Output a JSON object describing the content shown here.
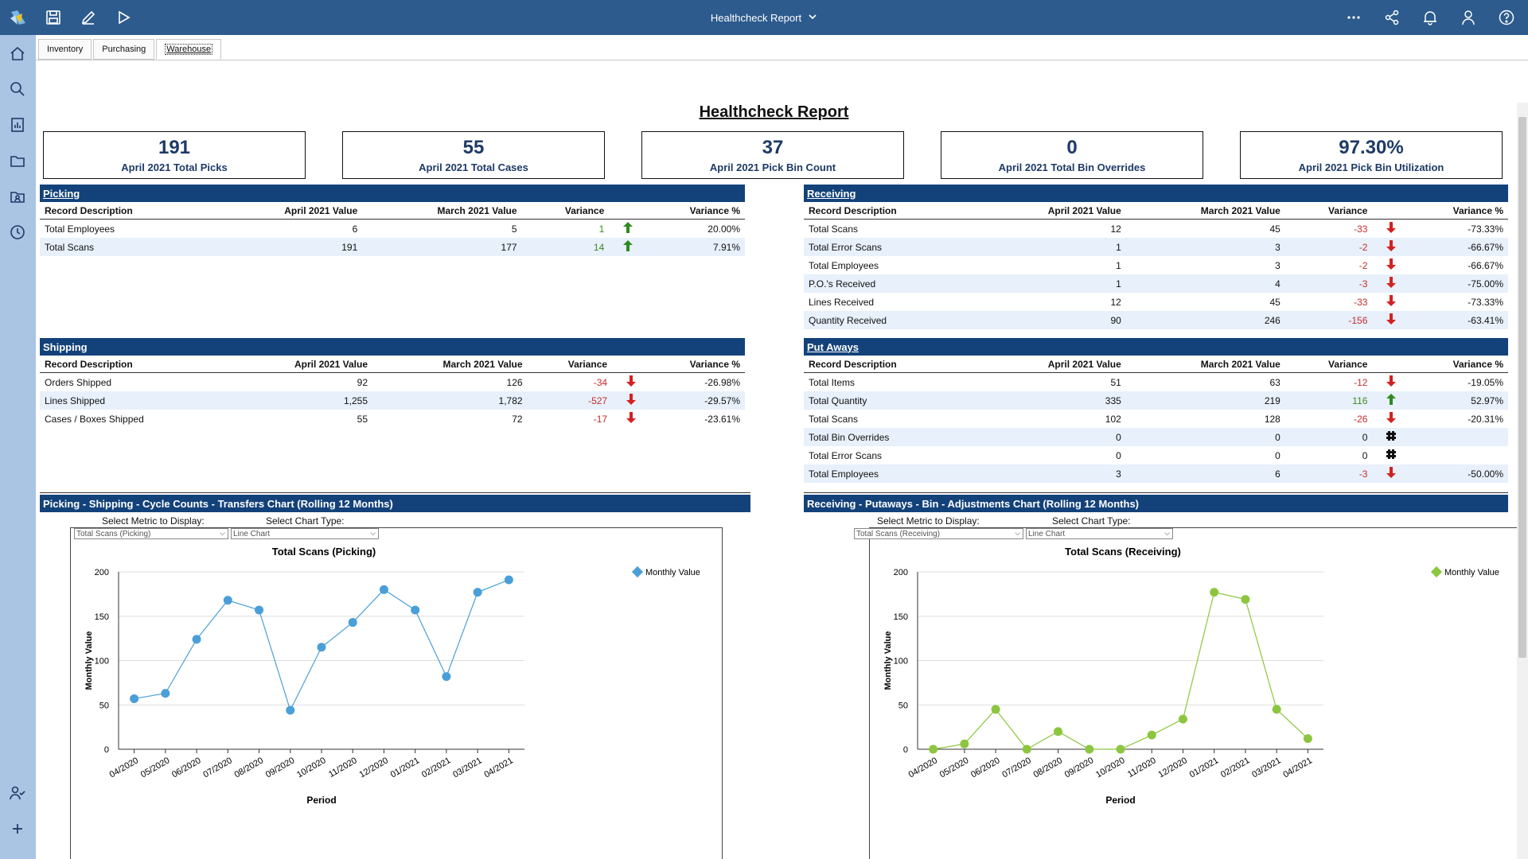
{
  "topbar": {
    "title": "Healthcheck Report",
    "left_icons": [
      "app-logo-icon",
      "save-icon",
      "edit-icon",
      "play-icon"
    ],
    "right_icons": [
      "more-icon",
      "share-icon",
      "bell-icon",
      "user-icon",
      "help-icon"
    ]
  },
  "sidebar": {
    "icons": [
      "home-icon",
      "search-icon",
      "reports-icon",
      "folder-icon",
      "contacts-folder-icon",
      "history-icon",
      "user-check-icon",
      "add-icon"
    ]
  },
  "tabs": [
    {
      "label": "Inventory"
    },
    {
      "label": "Purchasing"
    },
    {
      "label": "Warehouse"
    }
  ],
  "report": {
    "title": "Healthcheck Report",
    "kpis": [
      {
        "value": "191",
        "label": "April 2021 Total Picks"
      },
      {
        "value": "55",
        "label": "April 2021 Total Cases"
      },
      {
        "value": "37",
        "label": "April 2021 Pick Bin Count"
      },
      {
        "value": "0",
        "label": "April 2021 Total Bin Overrides"
      },
      {
        "value": "97.30%",
        "label": "April 2021 Pick Bin Utilization"
      }
    ],
    "columns": [
      "Record Description",
      "April 2021 Value",
      "March 2021 Value",
      "Variance",
      "Variance %"
    ],
    "picking": {
      "title": "Picking",
      "rows": [
        {
          "desc": "Total Employees",
          "apr": "6",
          "mar": "5",
          "var": "1",
          "trend": "up",
          "pct": "20.00%"
        },
        {
          "desc": "Total Scans",
          "apr": "191",
          "mar": "177",
          "var": "14",
          "trend": "up",
          "pct": "7.91%"
        }
      ]
    },
    "shipping": {
      "title": "Shipping",
      "rows": [
        {
          "desc": "Orders Shipped",
          "apr": "92",
          "mar": "126",
          "var": "-34",
          "trend": "down",
          "pct": "-26.98%"
        },
        {
          "desc": "Lines Shipped",
          "apr": "1,255",
          "mar": "1,782",
          "var": "-527",
          "trend": "down",
          "pct": "-29.57%"
        },
        {
          "desc": "Cases / Boxes Shipped",
          "apr": "55",
          "mar": "72",
          "var": "-17",
          "trend": "down",
          "pct": "-23.61%"
        }
      ]
    },
    "receiving": {
      "title": "Receiving",
      "rows": [
        {
          "desc": "Total Scans",
          "apr": "12",
          "mar": "45",
          "var": "-33",
          "trend": "down",
          "pct": "-73.33%"
        },
        {
          "desc": "Total Error Scans",
          "apr": "1",
          "mar": "3",
          "var": "-2",
          "trend": "down",
          "pct": "-66.67%"
        },
        {
          "desc": "Total Employees",
          "apr": "1",
          "mar": "3",
          "var": "-2",
          "trend": "down",
          "pct": "-66.67%"
        },
        {
          "desc": "P.O.'s Received",
          "apr": "1",
          "mar": "4",
          "var": "-3",
          "trend": "down",
          "pct": "-75.00%"
        },
        {
          "desc": "Lines Received",
          "apr": "12",
          "mar": "45",
          "var": "-33",
          "trend": "down",
          "pct": "-73.33%"
        },
        {
          "desc": "Quantity Received",
          "apr": "90",
          "mar": "246",
          "var": "-156",
          "trend": "down",
          "pct": "-63.41%"
        }
      ]
    },
    "putaways": {
      "title": "Put Aways",
      "rows": [
        {
          "desc": "Total Items",
          "apr": "51",
          "mar": "63",
          "var": "-12",
          "trend": "down",
          "pct": "-19.05%"
        },
        {
          "desc": "Total Quantity",
          "apr": "335",
          "mar": "219",
          "var": "116",
          "trend": "up",
          "pct": "52.97%"
        },
        {
          "desc": "Total Scans",
          "apr": "102",
          "mar": "128",
          "var": "-26",
          "trend": "down",
          "pct": "-20.31%"
        },
        {
          "desc": "Total Bin Overrides",
          "apr": "0",
          "mar": "0",
          "var": "0",
          "trend": "flat",
          "pct": ""
        },
        {
          "desc": "Total Error Scans",
          "apr": "0",
          "mar": "0",
          "var": "0",
          "trend": "flat",
          "pct": ""
        },
        {
          "desc": "Total Employees",
          "apr": "3",
          "mar": "6",
          "var": "-3",
          "trend": "down",
          "pct": "-50.00%"
        }
      ]
    },
    "chart_panels": [
      {
        "title": "Picking - Shipping - Cycle Counts - Transfers Chart (Rolling 12 Months)",
        "metric_label": "Select Metric to Display:",
        "type_label": "Select Chart Type:",
        "metric_value": "Total Scans (Picking)",
        "type_value": "Line Chart"
      },
      {
        "title": "Receiving - Putaways - Bin - Adjustments Chart (Rolling 12 Months)",
        "metric_label": "Select Metric to Display:",
        "type_label": "Select Chart Type:",
        "metric_value": "Total Scans (Receiving)",
        "type_value": "Line Chart"
      }
    ]
  },
  "chart_data": [
    {
      "type": "line",
      "title": "Total Scans (Picking)",
      "xlabel": "Period",
      "ylabel": "Monthly Value",
      "ylim": [
        0,
        200
      ],
      "yticks": [
        0,
        50,
        100,
        150,
        200
      ],
      "grid": true,
      "legend": "top-right",
      "color": "#4a9fd8",
      "categories": [
        "04/2020",
        "05/2020",
        "06/2020",
        "07/2020",
        "08/2020",
        "09/2020",
        "10/2020",
        "11/2020",
        "12/2020",
        "01/2021",
        "02/2021",
        "03/2021",
        "04/2021"
      ],
      "series": [
        {
          "name": "Monthly Value",
          "values": [
            57,
            63,
            124,
            168,
            157,
            44,
            115,
            143,
            180,
            157,
            82,
            177,
            191
          ]
        }
      ]
    },
    {
      "type": "line",
      "title": "Total Scans (Receiving)",
      "xlabel": "Period",
      "ylabel": "Monthly Value",
      "ylim": [
        0,
        200
      ],
      "yticks": [
        0,
        50,
        100,
        150,
        200
      ],
      "grid": true,
      "legend": "top-right",
      "color": "#8cc63f",
      "categories": [
        "04/2020",
        "05/2020",
        "06/2020",
        "07/2020",
        "08/2020",
        "09/2020",
        "10/2020",
        "11/2020",
        "12/2020",
        "01/2021",
        "02/2021",
        "03/2021",
        "04/2021"
      ],
      "series": [
        {
          "name": "Monthly Value",
          "values": [
            0,
            6,
            45,
            0,
            20,
            0,
            0,
            16,
            34,
            177,
            169,
            45,
            12
          ]
        }
      ]
    }
  ]
}
